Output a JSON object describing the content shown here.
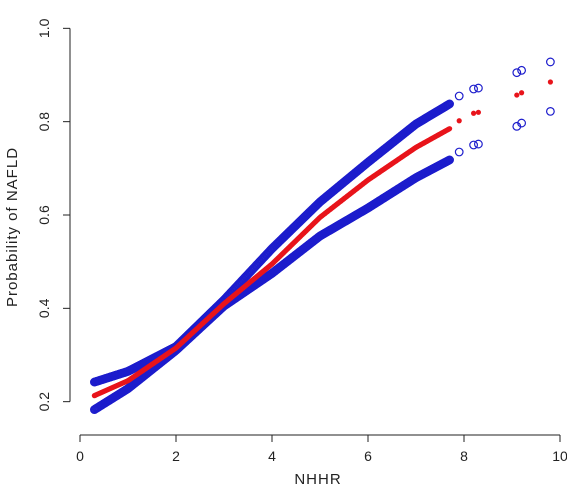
{
  "chart_data": {
    "type": "scatter",
    "title": "",
    "xlabel": "NHHR",
    "ylabel": "Probability of NAFLD",
    "xlim": [
      0,
      10
    ],
    "ylim": [
      0.15,
      1.05
    ],
    "xticks": [
      0,
      2,
      4,
      6,
      8,
      10
    ],
    "yticks": [
      0.2,
      0.4,
      0.6,
      0.8,
      1.0
    ],
    "xtick_labels": [
      "0",
      "2",
      "4",
      "6",
      "8",
      "10"
    ],
    "ytick_labels": [
      "0.2",
      "0.4",
      "0.6",
      "0.8",
      "1.0"
    ],
    "grid": false,
    "legend": "none",
    "colors": {
      "prediction": "#e8141b",
      "bounds": "#1c1ccc",
      "axis": "#222222"
    },
    "dense_range": [
      0.3,
      7.7
    ],
    "series": [
      {
        "role": "upper-bound",
        "marker": "open-circle",
        "curve": [
          [
            0.3,
            0.242
          ],
          [
            1.0,
            0.265
          ],
          [
            2.0,
            0.318
          ],
          [
            3.0,
            0.418
          ],
          [
            4.0,
            0.528
          ],
          [
            5.0,
            0.628
          ],
          [
            6.0,
            0.713
          ],
          [
            7.0,
            0.795
          ],
          [
            7.7,
            0.838
          ]
        ],
        "points": [
          [
            7.9,
            0.855
          ],
          [
            8.2,
            0.87
          ],
          [
            8.3,
            0.872
          ],
          [
            9.1,
            0.905
          ],
          [
            9.2,
            0.91
          ],
          [
            9.8,
            0.928
          ]
        ]
      },
      {
        "role": "prediction",
        "marker": "filled-dot",
        "curve": [
          [
            0.3,
            0.213
          ],
          [
            1.0,
            0.245
          ],
          [
            2.0,
            0.315
          ],
          [
            3.0,
            0.41
          ],
          [
            4.0,
            0.495
          ],
          [
            5.0,
            0.595
          ],
          [
            6.0,
            0.675
          ],
          [
            7.0,
            0.745
          ],
          [
            7.7,
            0.785
          ]
        ],
        "points": [
          [
            7.9,
            0.802
          ],
          [
            8.2,
            0.818
          ],
          [
            8.3,
            0.82
          ],
          [
            9.1,
            0.857
          ],
          [
            9.2,
            0.862
          ],
          [
            9.8,
            0.885
          ]
        ]
      },
      {
        "role": "lower-bound",
        "marker": "open-circle",
        "curve": [
          [
            0.3,
            0.183
          ],
          [
            1.0,
            0.228
          ],
          [
            2.0,
            0.31
          ],
          [
            3.0,
            0.405
          ],
          [
            4.0,
            0.475
          ],
          [
            5.0,
            0.555
          ],
          [
            6.0,
            0.615
          ],
          [
            7.0,
            0.68
          ],
          [
            7.7,
            0.718
          ]
        ],
        "points": [
          [
            7.9,
            0.735
          ],
          [
            8.2,
            0.75
          ],
          [
            8.3,
            0.752
          ],
          [
            9.1,
            0.79
          ],
          [
            9.2,
            0.797
          ],
          [
            9.8,
            0.822
          ]
        ]
      }
    ]
  }
}
